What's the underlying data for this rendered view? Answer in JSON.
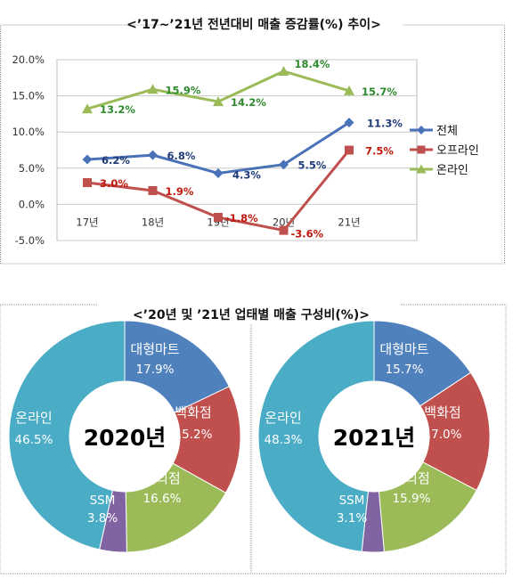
{
  "chart_data": [
    {
      "type": "line",
      "title": "<’17~’21년 전년대비 매출 증감률(%) 추이>",
      "categories": [
        "17년",
        "18년",
        "19년",
        "20년",
        "21년"
      ],
      "ylim": [
        -5.0,
        20.0
      ],
      "yticks": [
        "20.0%",
        "15.0%",
        "10.0%",
        "5.0%",
        "0.0%",
        "-5.0%"
      ],
      "ytick_values": [
        20,
        15,
        10,
        5,
        0,
        -5
      ],
      "grid": "horizontal",
      "legend_position": "right",
      "series": [
        {
          "name": "전체",
          "values": [
            6.2,
            6.8,
            4.3,
            5.5,
            11.3
          ],
          "labels": [
            "6.2%",
            "6.8%",
            "4.3%",
            "5.5%",
            "11.3%"
          ],
          "color": "#4a72b8",
          "label_color": "#1f3a78",
          "marker": "diamond"
        },
        {
          "name": "오프라인",
          "values": [
            3.0,
            1.9,
            -1.8,
            -3.6,
            7.5
          ],
          "labels": [
            "3.0%",
            "1.9%",
            "-1.8%",
            "-3.6%",
            "7.5%"
          ],
          "color": "#c0504d",
          "label_color": "#c0180c",
          "marker": "square"
        },
        {
          "name": "온라인",
          "values": [
            13.2,
            15.9,
            14.2,
            18.4,
            15.7
          ],
          "labels": [
            "13.2%",
            "15.9%",
            "14.2%",
            "18.4%",
            "15.7%"
          ],
          "color": "#9bbb59",
          "label_color": "#2e8a2e",
          "marker": "triangle"
        }
      ]
    },
    {
      "type": "pie",
      "title": "<’20년 및 ’21년 업태별 매출 구성비(%)>",
      "center_label": "2020년",
      "slices": [
        {
          "name": "대형마트",
          "value": 17.9,
          "label": "17.9%",
          "color": "#4f81bd"
        },
        {
          "name": "백화점",
          "value": 15.2,
          "label": "15.2%",
          "color": "#c0504d"
        },
        {
          "name": "편의점",
          "value": 16.6,
          "label": "16.6%",
          "color": "#9bbb59"
        },
        {
          "name": "SSM",
          "value": 3.8,
          "label": "3.8%",
          "color": "#8064a2"
        },
        {
          "name": "온라인",
          "value": 46.5,
          "label": "46.5%",
          "color": "#4bacc6"
        }
      ]
    },
    {
      "type": "pie",
      "center_label": "2021년",
      "slices": [
        {
          "name": "대형마트",
          "value": 15.7,
          "label": "15.7%",
          "color": "#4f81bd"
        },
        {
          "name": "백화점",
          "value": 17.0,
          "label": "17.0%",
          "color": "#c0504d"
        },
        {
          "name": "편의점",
          "value": 15.9,
          "label": "15.9%",
          "color": "#9bbb59"
        },
        {
          "name": "SSM",
          "value": 3.1,
          "label": "3.1%",
          "color": "#8064a2"
        },
        {
          "name": "온라인",
          "value": 48.3,
          "label": "48.3%",
          "color": "#4bacc6"
        }
      ]
    }
  ]
}
